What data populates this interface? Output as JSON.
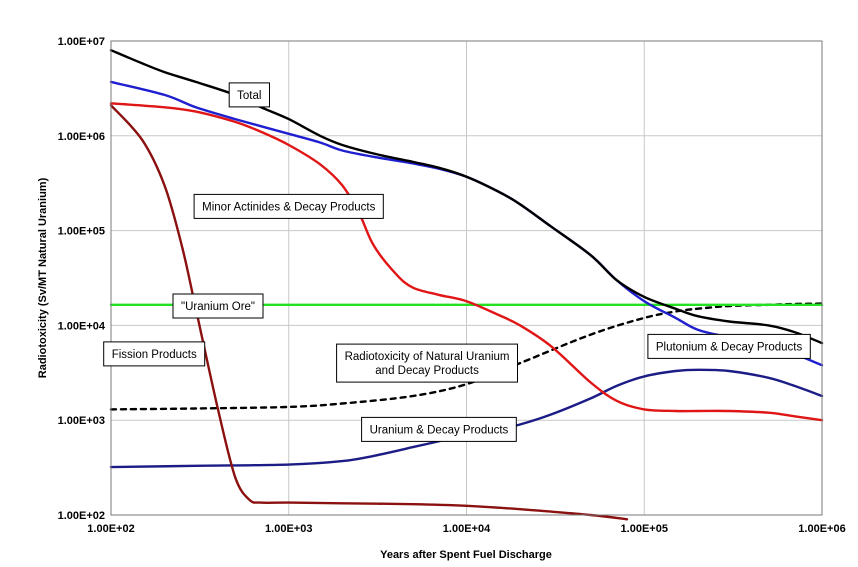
{
  "chart_data": {
    "type": "line",
    "xlabel": "Years after Spent Fuel Discharge",
    "ylabel": "Radiotoxicity (Sv/MT Natural Uranium)",
    "x_scale": "log",
    "y_scale": "log",
    "xlim": [
      100,
      1000000
    ],
    "ylim": [
      100,
      10000000
    ],
    "x_tick_values": [
      100,
      1000,
      10000,
      100000,
      1000000
    ],
    "x_tick_labels": [
      "1.00E+02",
      "1.00E+03",
      "1.00E+04",
      "1.00E+05",
      "1.00E+06"
    ],
    "y_tick_values": [
      100,
      1000,
      10000,
      100000,
      1000000,
      10000000
    ],
    "y_tick_labels": [
      "1.00E+02",
      "1.00E+03",
      "1.00E+04",
      "1.00E+05",
      "1.00E+06",
      "1.00E+07"
    ],
    "grid": true,
    "series": [
      {
        "key": "total",
        "color": "#000000",
        "dash": "",
        "x": [
          100,
          150,
          200,
          300,
          500,
          700,
          1000,
          1500,
          2000,
          3000,
          5000,
          7000,
          10000,
          15000,
          20000,
          30000,
          50000,
          70000,
          100000,
          150000,
          200000,
          300000,
          500000,
          700000,
          1000000
        ],
        "y": [
          8000000,
          5800000,
          4700000,
          3700000,
          2700000,
          2000000,
          1500000,
          1000000,
          800000,
          650000,
          530000,
          460000,
          370000,
          260000,
          190000,
          110000,
          55000,
          30000,
          20000,
          15000,
          12500,
          11000,
          10000,
          8500,
          6500
        ]
      },
      {
        "key": "minor-actinides",
        "color": "#1f1fd0",
        "dash": "",
        "x": [
          100,
          200,
          300,
          500,
          1000,
          1500,
          2000,
          3000,
          5000,
          7000,
          10000,
          15000,
          20000,
          30000,
          50000,
          70000,
          100000,
          150000,
          200000,
          300000,
          500000,
          700000,
          1000000
        ],
        "y": [
          3700000,
          2700000,
          2000000,
          1500000,
          1050000,
          850000,
          700000,
          600000,
          510000,
          450000,
          370000,
          260000,
          190000,
          110000,
          55000,
          30000,
          18000,
          12000,
          9000,
          7500,
          6200,
          5000,
          3800
        ]
      },
      {
        "key": "plutonium",
        "color": "#e01515",
        "dash": "",
        "x": [
          100,
          200,
          300,
          500,
          700,
          1000,
          1500,
          2000,
          2500,
          3000,
          4000,
          5000,
          7000,
          10000,
          15000,
          20000,
          30000,
          50000,
          70000,
          100000,
          150000,
          200000,
          300000,
          500000,
          700000,
          1000000
        ],
        "y": [
          2200000,
          2000000,
          1800000,
          1400000,
          1100000,
          800000,
          500000,
          300000,
          150000,
          70000,
          35000,
          25000,
          21000,
          18000,
          13000,
          10000,
          6000,
          2500,
          1600,
          1300,
          1250,
          1250,
          1250,
          1200,
          1100,
          1000
        ]
      },
      {
        "key": "fission-products",
        "color": "#8b1010",
        "dash": "",
        "x": [
          100,
          150,
          200,
          250,
          300,
          400,
          500,
          600,
          700,
          1000,
          2000,
          5000,
          10000,
          20000,
          50000,
          80000
        ],
        "y": [
          2100000,
          900000,
          300000,
          70000,
          15000,
          1300,
          250,
          145,
          135,
          135,
          133,
          130,
          125,
          115,
          100,
          90
        ]
      },
      {
        "key": "uranium",
        "color": "#1c1c86",
        "dash": "",
        "x": [
          100,
          300,
          1000,
          2000,
          3000,
          5000,
          7000,
          10000,
          15000,
          20000,
          30000,
          50000,
          70000,
          100000,
          150000,
          200000,
          300000,
          500000,
          700000,
          1000000
        ],
        "y": [
          320,
          330,
          340,
          370,
          420,
          520,
          600,
          700,
          800,
          900,
          1150,
          1700,
          2300,
          2900,
          3300,
          3400,
          3300,
          2800,
          2300,
          1800
        ]
      },
      {
        "key": "natural-uranium",
        "color": "#000000",
        "dash": "5,5",
        "x": [
          100,
          300,
          1000,
          2000,
          5000,
          10000,
          20000,
          50000,
          100000,
          150000,
          200000,
          300000,
          500000,
          700000,
          1000000
        ],
        "y": [
          1300,
          1330,
          1380,
          1500,
          1800,
          2400,
          4000,
          8000,
          12000,
          14000,
          15000,
          16000,
          16500,
          16800,
          17000
        ]
      },
      {
        "key": "uranium-ore",
        "color": "#22e022",
        "dash": "",
        "x": [
          100,
          1000000
        ],
        "y": [
          16500,
          16500
        ]
      }
    ],
    "annotations": [
      {
        "key": "total",
        "lines": [
          "Total"
        ],
        "x": 600,
        "y": 2700000
      },
      {
        "key": "minor-actinides",
        "lines": [
          "Minor Actinides & Decay Products"
        ],
        "x": 1000,
        "y": 180000
      },
      {
        "key": "uranium-ore",
        "lines": [
          "\"Uranium Ore\""
        ],
        "x": 400,
        "y": 16000
      },
      {
        "key": "fission-products",
        "lines": [
          "Fission Products"
        ],
        "x": 175,
        "y": 5000
      },
      {
        "key": "natural-uranium",
        "lines": [
          "Radiotoxicity of Natural Uranium",
          "and Decay Products"
        ],
        "x": 6000,
        "y": 4000
      },
      {
        "key": "plutonium",
        "lines": [
          "Plutonium & Decay Products"
        ],
        "x": 300000,
        "y": 6000
      },
      {
        "key": "uranium",
        "lines": [
          "Uranium & Decay Products"
        ],
        "x": 7000,
        "y": 800
      }
    ]
  }
}
